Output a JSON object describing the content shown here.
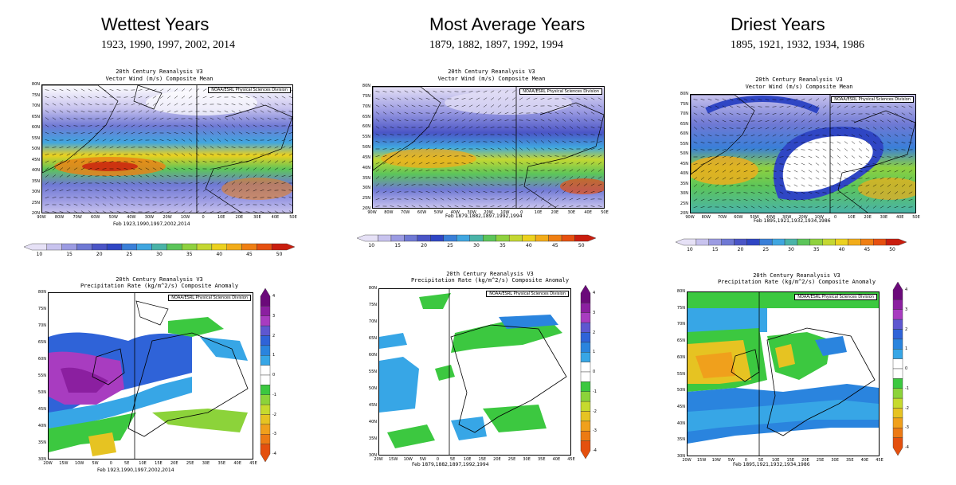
{
  "headers": [
    {
      "title": "Wettest Years",
      "years": "1923, 1990, 1997, 2002, 2014"
    },
    {
      "title": "Most Average Years",
      "years": "1879, 1882, 1897, 1992, 1994"
    },
    {
      "title": "Driest Years",
      "years": "1895, 1921, 1932, 1934, 1986"
    }
  ],
  "wind": {
    "title_line1": "20th Century Reanalysis V3",
    "title_line2": "Vector Wind (m/s) Composite Mean",
    "credit": "NOAA/ESRL Physical Sciences Division",
    "lat_labels": [
      "80N",
      "75N",
      "70N",
      "65N",
      "60N",
      "55N",
      "50N",
      "45N",
      "40N",
      "35N",
      "30N",
      "25N",
      "20N"
    ],
    "lon_labels": [
      "90W",
      "80W",
      "70W",
      "60W",
      "50W",
      "40W",
      "30W",
      "20W",
      "10W",
      "0",
      "10E",
      "20E",
      "30E",
      "40E",
      "50E"
    ],
    "colorbar_ticks": [
      "10",
      "15",
      "20",
      "25",
      "30",
      "35",
      "40",
      "45",
      "50"
    ],
    "colorbar_colors": [
      "#e6e1f6",
      "#c8c3ee",
      "#9b9be2",
      "#6f79d4",
      "#4a55c6",
      "#2f46c4",
      "#3a7fd8",
      "#40a6e0",
      "#4ab3a8",
      "#5cc55a",
      "#8fd13f",
      "#c4d732",
      "#ecd11f",
      "#f2ac1a",
      "#ef7f13",
      "#e65010",
      "#c91d0e"
    ],
    "panels": [
      {
        "period": "Feb 1923,1990,1997,2002,2014"
      },
      {
        "period": "Feb 1879,1882,1897,1992,1994"
      },
      {
        "period": "Feb 1895,1921,1932,1934,1986"
      }
    ]
  },
  "precip": {
    "title_line1": "20th Century Reanalysis V3",
    "title_line2": "Precipitation Rate (kg/m^2/s) Composite Anomaly",
    "credit": "NOAA/ESRL Physical Sciences Division",
    "lat_labels": [
      "80N",
      "75N",
      "70N",
      "65N",
      "60N",
      "55N",
      "50N",
      "45N",
      "40N",
      "35N",
      "30N"
    ],
    "lon_labels": [
      "20W",
      "15W",
      "10W",
      "5W",
      "0",
      "5E",
      "10E",
      "15E",
      "20E",
      "25E",
      "30E",
      "35E",
      "40E",
      "45E"
    ],
    "colorbar_ticks": [
      "4",
      "3",
      "2",
      "1",
      "0",
      "-1",
      "-2",
      "-3",
      "-4"
    ],
    "colorbar_colors": [
      "#6b0a7a",
      "#8b1fa0",
      "#a83cc0",
      "#5e57d0",
      "#2f63d8",
      "#2a84de",
      "#37a6e6",
      "#ffffff",
      "#ffffff",
      "#3cc840",
      "#8cd33a",
      "#c6da2e",
      "#e6c322",
      "#f0a01c",
      "#ec7a14",
      "#e4500e"
    ],
    "panels": [
      {
        "period": "Feb 1923,1990,1997,2002,2014"
      },
      {
        "period": "Feb 1879,1882,1897,1992,1994"
      },
      {
        "period": "Feb 1895,1921,1932,1934,1986"
      }
    ]
  },
  "chart_data": [
    {
      "type": "heatmap",
      "title": "20th Century Reanalysis V3 Vector Wind (m/s) Composite Mean",
      "subtitle": "Feb 1923,1990,1997,2002,2014",
      "xlim": [
        "90W",
        "50E"
      ],
      "ylim": [
        "20N",
        "80N"
      ],
      "color_scale": [
        10,
        50
      ],
      "description_values": {
        "max_speed_region": "40N 60W",
        "max_approx": 45
      }
    },
    {
      "type": "heatmap",
      "title": "20th Century Reanalysis V3 Vector Wind (m/s) Composite Mean",
      "subtitle": "Feb 1879,1882,1897,1992,1994",
      "xlim": [
        "90W",
        "50E"
      ],
      "ylim": [
        "20N",
        "80N"
      ],
      "color_scale": [
        10,
        50
      ]
    },
    {
      "type": "heatmap",
      "title": "20th Century Reanalysis V3 Vector Wind (m/s) Composite Mean",
      "subtitle": "Feb 1895,1921,1932,1934,1986",
      "xlim": [
        "90W",
        "50E"
      ],
      "ylim": [
        "20N",
        "80N"
      ],
      "color_scale": [
        10,
        50
      ]
    },
    {
      "type": "heatmap",
      "title": "20th Century Reanalysis V3 Precipitation Rate (kg/m^2/s) Composite Anomaly",
      "subtitle": "Feb 1923,1990,1997,2002,2014",
      "xlim": [
        "20W",
        "45E"
      ],
      "ylim": [
        "30N",
        "80N"
      ],
      "color_scale": [
        -4,
        4
      ]
    },
    {
      "type": "heatmap",
      "title": "20th Century Reanalysis V3 Precipitation Rate (kg/m^2/s) Composite Anomaly",
      "subtitle": "Feb 1879,1882,1897,1992,1994",
      "xlim": [
        "20W",
        "45E"
      ],
      "ylim": [
        "30N",
        "80N"
      ],
      "color_scale": [
        -4,
        4
      ]
    },
    {
      "type": "heatmap",
      "title": "20th Century Reanalysis V3 Precipitation Rate (kg/m^2/s) Composite Anomaly",
      "subtitle": "Feb 1895,1921,1932,1934,1986",
      "xlim": [
        "20W",
        "45E"
      ],
      "ylim": [
        "30N",
        "80N"
      ],
      "color_scale": [
        -4,
        4
      ]
    }
  ]
}
